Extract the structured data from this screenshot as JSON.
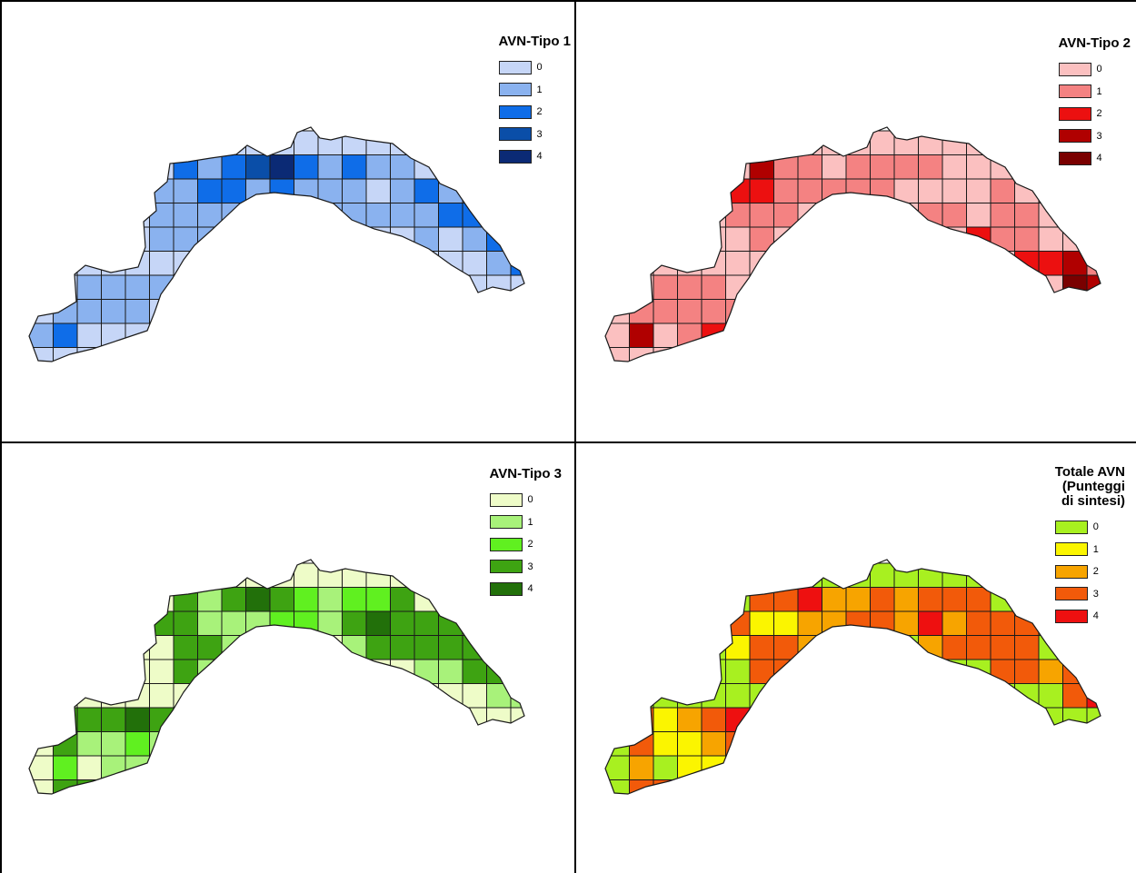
{
  "panels": [
    {
      "legend_title": "AVN-Tipo 1",
      "legend": [
        {
          "label": "0",
          "color": "#c6d6f7"
        },
        {
          "label": "1",
          "color": "#8ab2ef"
        },
        {
          "label": "2",
          "color": "#0f6de8"
        },
        {
          "label": "3",
          "color": "#0a4ea8"
        },
        {
          "label": "4",
          "color": "#0b2a75"
        }
      ],
      "grid": [
        [
          0,
          0,
          0,
          0,
          0,
          0,
          0,
          0,
          0,
          0,
          0,
          0,
          0,
          0,
          0,
          0,
          0,
          0,
          0,
          0,
          0,
          0,
          0,
          0
        ],
        [
          0,
          0,
          0,
          0,
          0,
          0,
          2,
          1,
          2,
          3,
          4,
          2,
          1,
          2,
          1,
          1,
          0,
          0,
          0,
          0,
          0,
          0,
          0,
          0
        ],
        [
          0,
          0,
          0,
          0,
          0,
          1,
          1,
          2,
          2,
          1,
          2,
          1,
          1,
          1,
          0,
          1,
          2,
          1,
          0,
          0,
          0,
          0,
          0,
          0
        ],
        [
          0,
          0,
          0,
          0,
          0,
          1,
          1,
          1,
          1,
          0,
          0,
          0,
          1,
          1,
          1,
          1,
          1,
          2,
          2,
          1,
          0,
          0,
          0,
          0
        ],
        [
          0,
          0,
          0,
          0,
          0,
          1,
          1,
          1,
          0,
          0,
          0,
          0,
          0,
          0,
          0,
          0,
          1,
          0,
          1,
          2,
          2,
          0,
          0,
          0
        ],
        [
          0,
          0,
          0,
          0,
          0,
          0,
          0,
          1,
          0,
          0,
          0,
          0,
          0,
          0,
          0,
          0,
          0,
          0,
          0,
          1,
          2,
          0,
          0,
          0
        ],
        [
          0,
          0,
          1,
          1,
          1,
          1,
          1,
          1,
          0,
          0,
          0,
          0,
          0,
          0,
          0,
          0,
          0,
          0,
          0,
          0,
          0,
          0,
          0,
          0
        ],
        [
          0,
          1,
          1,
          1,
          1,
          0,
          0,
          0,
          0,
          0,
          0,
          0,
          0,
          0,
          0,
          0,
          0,
          0,
          0,
          0,
          0,
          0,
          0,
          0
        ],
        [
          1,
          2,
          0,
          0,
          0,
          1,
          0,
          0,
          0,
          0,
          0,
          0,
          0,
          0,
          0,
          0,
          0,
          0,
          0,
          0,
          0,
          0,
          0,
          0
        ],
        [
          0,
          0,
          0,
          0,
          0,
          0,
          0,
          0,
          0,
          0,
          0,
          0,
          0,
          0,
          0,
          0,
          0,
          0,
          0,
          0,
          0,
          0,
          0,
          0
        ]
      ]
    },
    {
      "legend_title": "AVN-Tipo 2",
      "legend": [
        {
          "label": "0",
          "color": "#fbc0c0"
        },
        {
          "label": "1",
          "color": "#f48282"
        },
        {
          "label": "2",
          "color": "#ec1010"
        },
        {
          "label": "3",
          "color": "#b00000"
        },
        {
          "label": "4",
          "color": "#7a0000"
        }
      ],
      "grid": [
        [
          0,
          0,
          0,
          0,
          0,
          0,
          0,
          0,
          0,
          0,
          0,
          0,
          0,
          0,
          0,
          0,
          0,
          0,
          0,
          0,
          0,
          0,
          0,
          0
        ],
        [
          0,
          0,
          0,
          0,
          0,
          0,
          3,
          1,
          1,
          0,
          1,
          1,
          1,
          1,
          0,
          0,
          0,
          0,
          0,
          0,
          0,
          0,
          0,
          0
        ],
        [
          0,
          0,
          0,
          0,
          0,
          2,
          2,
          1,
          1,
          1,
          1,
          1,
          0,
          0,
          0,
          0,
          1,
          0,
          0,
          0,
          0,
          0,
          0,
          0
        ],
        [
          0,
          0,
          0,
          0,
          0,
          1,
          1,
          1,
          0,
          0,
          0,
          0,
          0,
          1,
          1,
          0,
          1,
          1,
          0,
          0,
          0,
          0,
          0,
          0
        ],
        [
          0,
          0,
          0,
          0,
          0,
          0,
          1,
          0,
          0,
          0,
          0,
          0,
          0,
          0,
          0,
          2,
          1,
          1,
          0,
          0,
          0,
          0,
          0,
          0
        ],
        [
          0,
          0,
          0,
          0,
          0,
          0,
          0,
          0,
          0,
          0,
          0,
          0,
          0,
          0,
          0,
          0,
          0,
          2,
          2,
          3,
          1,
          0,
          0,
          0
        ],
        [
          0,
          0,
          1,
          1,
          1,
          0,
          0,
          1,
          0,
          0,
          0,
          0,
          0,
          0,
          0,
          0,
          0,
          0,
          0,
          4,
          3,
          1,
          0,
          0
        ],
        [
          0,
          1,
          1,
          1,
          1,
          1,
          0,
          0,
          0,
          0,
          0,
          0,
          0,
          0,
          0,
          0,
          0,
          0,
          0,
          0,
          0,
          0,
          0,
          0
        ],
        [
          0,
          3,
          0,
          1,
          2,
          1,
          0,
          0,
          0,
          0,
          0,
          0,
          0,
          0,
          0,
          0,
          0,
          0,
          0,
          0,
          0,
          0,
          0,
          0
        ],
        [
          0,
          0,
          0,
          0,
          0,
          0,
          0,
          0,
          0,
          0,
          0,
          0,
          0,
          0,
          0,
          0,
          0,
          0,
          0,
          0,
          0,
          0,
          0,
          0
        ]
      ]
    },
    {
      "legend_title": "AVN-Tipo 3",
      "legend": [
        {
          "label": "0",
          "color": "#eefcc8"
        },
        {
          "label": "1",
          "color": "#a8f27a"
        },
        {
          "label": "2",
          "color": "#60f020"
        },
        {
          "label": "3",
          "color": "#3ea312"
        },
        {
          "label": "4",
          "color": "#22700a"
        }
      ],
      "grid": [
        [
          0,
          0,
          0,
          0,
          0,
          0,
          0,
          0,
          0,
          0,
          0,
          0,
          0,
          0,
          0,
          0,
          0,
          0,
          0,
          0,
          0,
          0,
          0,
          0
        ],
        [
          0,
          0,
          0,
          0,
          0,
          0,
          3,
          1,
          3,
          4,
          3,
          2,
          1,
          2,
          2,
          3,
          0,
          0,
          0,
          0,
          0,
          0,
          0,
          0
        ],
        [
          0,
          0,
          0,
          0,
          0,
          3,
          3,
          1,
          1,
          1,
          2,
          2,
          1,
          3,
          4,
          3,
          3,
          3,
          0,
          0,
          0,
          0,
          0,
          0
        ],
        [
          0,
          0,
          0,
          0,
          0,
          0,
          3,
          3,
          1,
          0,
          0,
          0,
          0,
          1,
          3,
          3,
          3,
          3,
          3,
          0,
          0,
          0,
          0,
          0
        ],
        [
          0,
          0,
          0,
          0,
          0,
          0,
          3,
          1,
          0,
          0,
          0,
          0,
          0,
          0,
          0,
          0,
          1,
          1,
          3,
          3,
          3,
          0,
          0,
          0
        ],
        [
          0,
          0,
          0,
          0,
          0,
          0,
          0,
          0,
          0,
          0,
          0,
          0,
          0,
          0,
          0,
          0,
          0,
          0,
          0,
          1,
          1,
          4,
          0,
          0
        ],
        [
          0,
          3,
          3,
          3,
          4,
          3,
          3,
          3,
          0,
          0,
          0,
          0,
          0,
          0,
          0,
          0,
          0,
          0,
          0,
          0,
          0,
          0,
          0,
          0
        ],
        [
          0,
          3,
          1,
          1,
          2,
          1,
          0,
          0,
          0,
          0,
          0,
          0,
          0,
          0,
          0,
          0,
          0,
          0,
          0,
          0,
          0,
          0,
          0,
          0
        ],
        [
          0,
          2,
          0,
          1,
          1,
          3,
          0,
          0,
          0,
          0,
          0,
          0,
          0,
          0,
          0,
          0,
          0,
          0,
          0,
          0,
          0,
          0,
          0,
          0
        ],
        [
          0,
          3,
          3,
          3,
          0,
          0,
          0,
          0,
          0,
          0,
          0,
          0,
          0,
          0,
          0,
          0,
          0,
          0,
          0,
          0,
          0,
          0,
          0,
          0
        ]
      ]
    },
    {
      "legend_title": "Totale AVN\n(Punteggi\ndi sintesi)",
      "legend": [
        {
          "label": "0",
          "color": "#a8f020"
        },
        {
          "label": "1",
          "color": "#fbf500"
        },
        {
          "label": "2",
          "color": "#f7a400"
        },
        {
          "label": "3",
          "color": "#f25a0a"
        },
        {
          "label": "4",
          "color": "#ee1010"
        }
      ],
      "grid": [
        [
          0,
          0,
          0,
          0,
          0,
          0,
          0,
          0,
          0,
          0,
          0,
          0,
          0,
          0,
          0,
          0,
          0,
          0,
          0,
          0,
          0,
          0,
          0,
          0
        ],
        [
          0,
          0,
          0,
          0,
          0,
          0,
          3,
          3,
          4,
          2,
          2,
          3,
          2,
          3,
          3,
          3,
          0,
          0,
          0,
          0,
          0,
          0,
          0,
          0
        ],
        [
          0,
          0,
          0,
          0,
          0,
          3,
          1,
          1,
          2,
          2,
          3,
          3,
          2,
          4,
          2,
          3,
          3,
          3,
          0,
          0,
          0,
          0,
          0,
          0
        ],
        [
          0,
          0,
          0,
          0,
          0,
          1,
          3,
          3,
          2,
          0,
          0,
          0,
          0,
          2,
          3,
          3,
          3,
          3,
          0,
          0,
          0,
          0,
          0,
          0
        ],
        [
          0,
          0,
          0,
          0,
          0,
          0,
          3,
          3,
          0,
          0,
          0,
          0,
          0,
          0,
          0,
          0,
          3,
          3,
          2,
          3,
          1,
          0,
          0,
          0
        ],
        [
          0,
          0,
          0,
          0,
          0,
          0,
          0,
          0,
          0,
          0,
          0,
          0,
          0,
          0,
          0,
          0,
          0,
          0,
          0,
          3,
          4,
          2,
          4,
          0
        ],
        [
          0,
          3,
          1,
          2,
          3,
          4,
          3,
          3,
          0,
          0,
          0,
          0,
          0,
          0,
          0,
          0,
          0,
          0,
          0,
          0,
          0,
          0,
          0,
          0
        ],
        [
          0,
          3,
          1,
          1,
          2,
          3,
          0,
          0,
          0,
          0,
          0,
          0,
          0,
          0,
          0,
          0,
          0,
          0,
          0,
          0,
          0,
          0,
          0,
          0
        ],
        [
          0,
          2,
          0,
          1,
          1,
          1,
          0,
          0,
          0,
          0,
          0,
          0,
          0,
          0,
          0,
          0,
          0,
          0,
          0,
          0,
          0,
          0,
          0,
          0
        ],
        [
          0,
          3,
          3,
          3,
          0,
          0,
          0,
          0,
          0,
          0,
          0,
          0,
          0,
          0,
          0,
          0,
          0,
          0,
          0,
          0,
          0,
          0,
          0,
          0
        ]
      ]
    }
  ]
}
